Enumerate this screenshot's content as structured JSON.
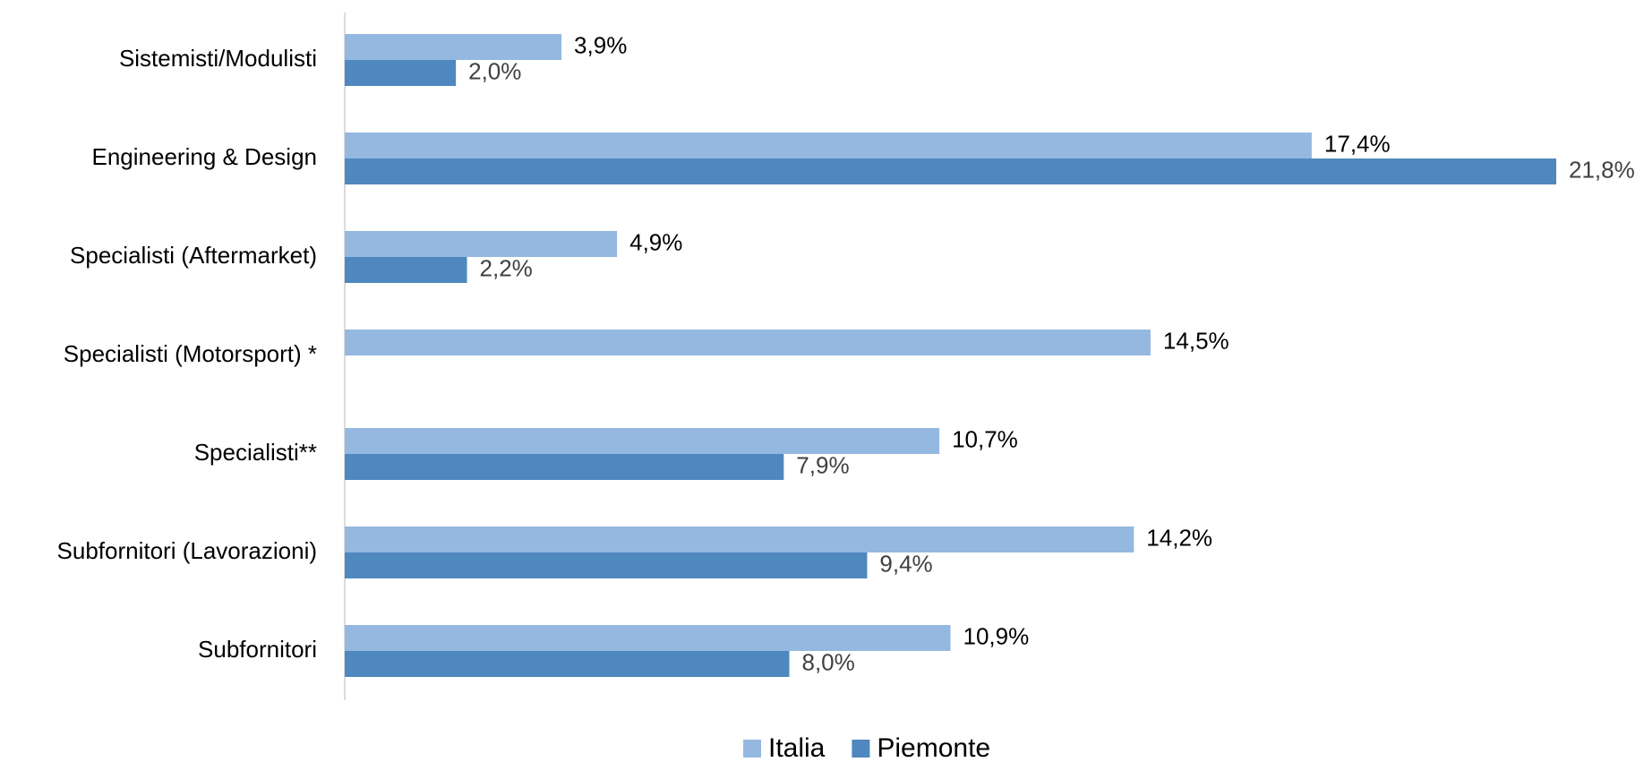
{
  "chart_data": {
    "type": "bar",
    "orientation": "horizontal",
    "categories": [
      "Sistemisti/Modulisti",
      "Engineering & Design",
      "Specialisti (Aftermarket)",
      "Specialisti (Motorsport) *",
      "Specialisti**",
      "Subfornitori (Lavorazioni)",
      "Subfornitori"
    ],
    "series": [
      {
        "name": "Italia",
        "color": "#95b8e0",
        "label_color": "#000000",
        "values": [
          3.9,
          17.4,
          4.9,
          14.5,
          10.7,
          14.2,
          10.9
        ],
        "value_labels": [
          "3,9%",
          "17,4%",
          "4,9%",
          "14,5%",
          "10,7%",
          "14,2%",
          "10,9%"
        ]
      },
      {
        "name": "Piemonte",
        "color": "#4f88bf",
        "label_color": "#404040",
        "values": [
          2.0,
          21.8,
          2.2,
          null,
          7.9,
          9.4,
          8.0
        ],
        "value_labels": [
          "2,0%",
          "21,8%",
          "2,2%",
          null,
          "7,9%",
          "9,4%",
          "8,0%"
        ]
      }
    ],
    "legend": "bottom"
  }
}
